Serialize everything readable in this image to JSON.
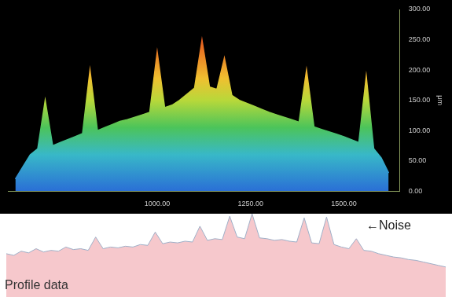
{
  "chart_data": [
    {
      "type": "area",
      "x": [
        620,
        640,
        660,
        680,
        700,
        720,
        740,
        760,
        780,
        800,
        820,
        840,
        860,
        880,
        900,
        920,
        940,
        960,
        980,
        1000,
        1020,
        1040,
        1060,
        1080,
        1100,
        1120,
        1140,
        1160,
        1180,
        1200,
        1220,
        1240,
        1260,
        1280,
        1300,
        1320,
        1340,
        1360,
        1380,
        1400,
        1420,
        1440,
        1460,
        1480,
        1500,
        1520,
        1540,
        1560,
        1580,
        1600,
        1620
      ],
      "values": [
        20,
        40,
        60,
        70,
        150,
        75,
        80,
        85,
        90,
        95,
        200,
        100,
        105,
        110,
        115,
        118,
        122,
        126,
        130,
        230,
        138,
        142,
        150,
        160,
        170,
        250,
        172,
        168,
        220,
        158,
        150,
        145,
        140,
        135,
        130,
        126,
        122,
        118,
        114,
        200,
        106,
        102,
        98,
        94,
        90,
        85,
        80,
        190,
        70,
        55,
        30
      ],
      "xlim": [
        600,
        1650
      ],
      "xticks": [
        {
          "value": 1000,
          "label": "1000.00"
        },
        {
          "value": 1250,
          "label": "1250.00"
        },
        {
          "value": 1500,
          "label": "1500.00"
        }
      ],
      "ylim": [
        0,
        300
      ],
      "yticks": [
        {
          "value": 0,
          "label": "0.00"
        },
        {
          "value": 50,
          "label": "50.00"
        },
        {
          "value": 100,
          "label": "100.00"
        },
        {
          "value": 150,
          "label": "150.00"
        },
        {
          "value": 200,
          "label": "200.00"
        },
        {
          "value": 250,
          "label": "250.00"
        },
        {
          "value": 300,
          "label": "300.00"
        }
      ],
      "ylabel": "μm",
      "grid": false
    },
    {
      "type": "area",
      "title": "Profile data",
      "annotation": "←Noise",
      "categories": [
        null,
        null,
        null,
        null,
        null,
        null,
        null,
        null,
        null,
        null,
        null,
        null,
        null,
        null,
        null,
        null,
        null,
        null,
        null,
        null,
        null,
        null,
        null,
        null,
        null,
        null,
        null,
        null,
        null,
        null,
        null,
        null,
        null,
        null,
        null,
        null,
        null,
        null,
        null,
        null,
        null,
        null,
        null,
        null,
        null,
        null,
        null,
        null,
        null,
        null,
        null,
        null,
        null,
        null,
        null,
        null,
        null,
        null,
        null,
        null
      ],
      "values": [
        52,
        50,
        55,
        53,
        58,
        54,
        56,
        55,
        60,
        57,
        58,
        56,
        72,
        58,
        60,
        59,
        61,
        60,
        63,
        62,
        78,
        64,
        66,
        65,
        67,
        66,
        85,
        68,
        70,
        69,
        97,
        72,
        70,
        100,
        71,
        70,
        68,
        69,
        67,
        66,
        95,
        65,
        64,
        96,
        63,
        60,
        58,
        70,
        56,
        55,
        52,
        50,
        48,
        47,
        45,
        44,
        42,
        40,
        38,
        36
      ],
      "ylim": [
        0,
        100
      ],
      "tick_labels": false,
      "grid": false
    }
  ]
}
